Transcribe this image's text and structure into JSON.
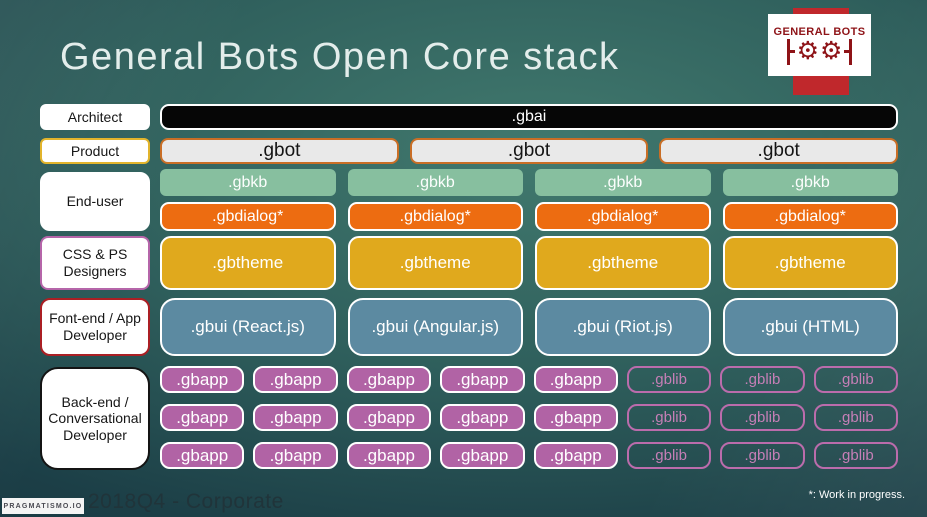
{
  "slide": {
    "title": "General Bots Open Core stack",
    "footer": "2018Q4 - Corporate",
    "brand": "PRAGMATISMO.IO",
    "footnote": "*: Work in progress.",
    "logo_text": "GENERAL BOTS"
  },
  "labels": {
    "architect": "Architect",
    "product": "Product",
    "end_user": "End-user",
    "css_ps": "CSS & PS Designers",
    "frontend": "Font-end / App Developer",
    "backend": "Back-end / Conversational Developer"
  },
  "stack": {
    "gbai": ".gbai",
    "gbot": [
      ".gbot",
      ".gbot",
      ".gbot"
    ],
    "gbkb": [
      ".gbkb",
      ".gbkb",
      ".gbkb",
      ".gbkb"
    ],
    "gbdialog": [
      ".gbdialog*",
      ".gbdialog*",
      ".gbdialog*",
      ".gbdialog*"
    ],
    "gbtheme": [
      ".gbtheme",
      ".gbtheme",
      ".gbtheme",
      ".gbtheme"
    ],
    "gbui": [
      ".gbui (React.js)",
      ".gbui (Angular.js)",
      ".gbui (Riot.js)",
      ".gbui (HTML)"
    ],
    "backend_rows": [
      [
        ".gbapp",
        ".gbapp",
        ".gbapp",
        ".gbapp",
        ".gbapp",
        ".gblib",
        ".gblib",
        ".gblib"
      ],
      [
        ".gbapp",
        ".gbapp",
        ".gbapp",
        ".gbapp",
        ".gbapp",
        ".gblib",
        ".gblib",
        ".gblib"
      ],
      [
        ".gbapp",
        ".gbapp",
        ".gbapp",
        ".gbapp",
        ".gbapp",
        ".gblib",
        ".gblib",
        ".gblib"
      ]
    ]
  },
  "colors": {
    "bg-center": "#41796e",
    "bg-edge": "#132e39",
    "title": "#e3edeb",
    "gbai-bg": "#060606",
    "gbot-bg": "#e9e9e9",
    "gbot-border": "#c96e26",
    "gbkb-bg": "#87bf9f",
    "gbdialog-bg": "#ed6c11",
    "gbtheme-bg": "#e0a91d",
    "gbui-bg": "#5c8aa1",
    "gbapp-bg": "#b163a5",
    "gblib-border": "#bb6cac",
    "logo-red": "#c0282c",
    "logo-dark-red": "#8e1317",
    "label-product-border": "#e2b42c",
    "label-css-border": "#b565a9",
    "label-frontend-border": "#ab1f24",
    "footer-text": "#20343a"
  }
}
